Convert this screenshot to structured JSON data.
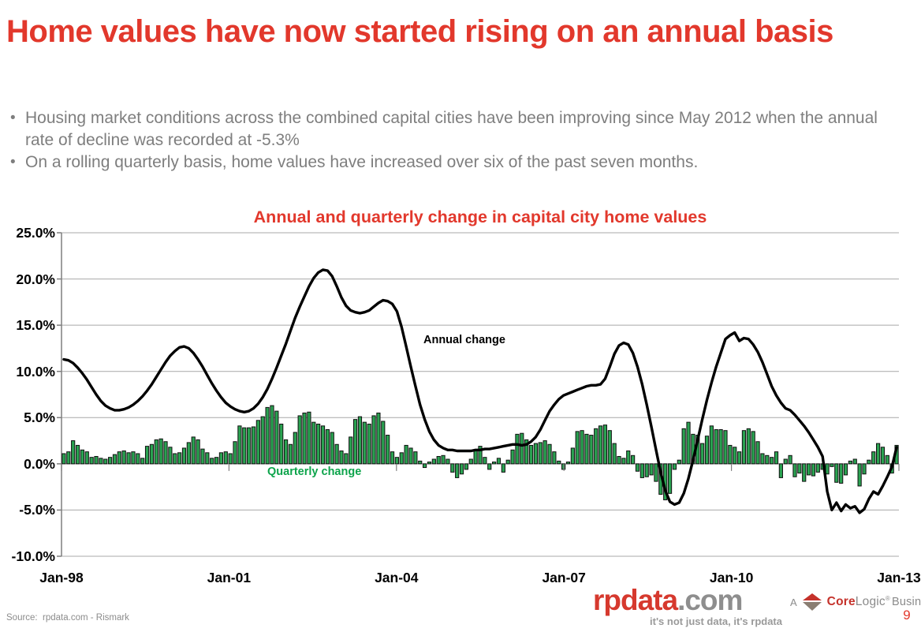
{
  "slide": {
    "title": "Home values have now started rising on an annual basis",
    "bullets": [
      "Housing market conditions across the combined capital cities have been improving since May 2012 when the annual rate of decline was recorded at -5.3%",
      "On a rolling quarterly basis, home values have increased over six of the past seven months."
    ],
    "source_note": "Source:  rpdata.com - Rismark",
    "page_number": "9"
  },
  "branding": {
    "logo_main": "rpdata",
    "logo_suffix": ".com",
    "tagline": "it's not just data, it's rpdata",
    "corelogic_prefix": "A",
    "corelogic_core": "Core",
    "corelogic_logic": "Logic",
    "corelogic_reg": "®",
    "corelogic_business": "Business"
  },
  "colors": {
    "accent_red": "#E2382C",
    "logo_red": "#D6392E",
    "bar_green": "#2AA251",
    "label_green": "#0DA44B",
    "line_black": "#000000",
    "grid_gray": "#A8A8A8",
    "axis_gray": "#7F7F7F",
    "text_gray": "#7E7E7E"
  },
  "chart_data": {
    "type": "combo-bar-line",
    "title": "Annual and quarterly change in capital city home values",
    "x_start": "Jan-1998",
    "x_end": "Jan-2013",
    "x_step_months": 1,
    "point_count": 181,
    "ylim": [
      -10,
      25
    ],
    "grid": true,
    "y_ticks": [
      "25.0%",
      "20.0%",
      "15.0%",
      "10.0%",
      "5.0%",
      "0.0%",
      "-5.0%",
      "-10.0%"
    ],
    "y_tick_values": [
      25,
      20,
      15,
      10,
      5,
      0,
      -5,
      -10
    ],
    "x_ticks": [
      "Jan-98",
      "Jan-01",
      "Jan-04",
      "Jan-07",
      "Jan-10",
      "Jan-13"
    ],
    "series": [
      {
        "name": "Annual change",
        "type": "line",
        "color": "#000000",
        "values": [
          11.3,
          11.2,
          10.9,
          10.4,
          9.8,
          9.1,
          8.3,
          7.5,
          6.8,
          6.3,
          6.0,
          5.8,
          5.8,
          5.9,
          6.1,
          6.4,
          6.8,
          7.3,
          7.9,
          8.6,
          9.4,
          10.2,
          11.0,
          11.7,
          12.2,
          12.6,
          12.7,
          12.5,
          12.0,
          11.3,
          10.5,
          9.6,
          8.7,
          7.9,
          7.2,
          6.6,
          6.2,
          5.9,
          5.7,
          5.6,
          5.7,
          6.0,
          6.5,
          7.2,
          8.1,
          9.2,
          10.4,
          11.7,
          13.0,
          14.4,
          15.8,
          17.0,
          18.1,
          19.2,
          20.1,
          20.7,
          21.0,
          20.9,
          20.3,
          19.2,
          18.0,
          17.1,
          16.6,
          16.4,
          16.3,
          16.4,
          16.6,
          17.0,
          17.4,
          17.7,
          17.6,
          17.3,
          16.5,
          14.8,
          12.7,
          10.5,
          8.4,
          6.4,
          4.8,
          3.5,
          2.6,
          2.0,
          1.7,
          1.5,
          1.5,
          1.4,
          1.4,
          1.4,
          1.4,
          1.5,
          1.5,
          1.6,
          1.6,
          1.7,
          1.8,
          1.9,
          2.0,
          2.1,
          2.1,
          2.0,
          2.1,
          2.4,
          2.9,
          3.7,
          4.7,
          5.7,
          6.4,
          7.0,
          7.4,
          7.6,
          7.8,
          8.0,
          8.2,
          8.4,
          8.5,
          8.5,
          8.6,
          9.2,
          10.5,
          11.9,
          12.8,
          13.1,
          12.9,
          12.0,
          10.5,
          8.6,
          6.4,
          4.0,
          1.5,
          -0.9,
          -2.9,
          -4.1,
          -4.4,
          -4.2,
          -3.2,
          -1.6,
          0.4,
          2.6,
          4.8,
          6.9,
          8.8,
          10.5,
          12.0,
          13.5,
          13.9,
          14.2,
          13.3,
          13.6,
          13.5,
          12.9,
          12.1,
          11.0,
          9.7,
          8.4,
          7.4,
          6.6,
          6.0,
          5.8,
          5.3,
          4.7,
          4.1,
          3.4,
          2.6,
          1.8,
          0.8,
          -3.0,
          -5.0,
          -4.2,
          -5.1,
          -4.4,
          -4.8,
          -4.6,
          -5.3,
          -4.9,
          -3.8,
          -3.0,
          -3.3,
          -2.4,
          -1.4,
          -0.3,
          1.8
        ]
      },
      {
        "name": "Quarterly change",
        "type": "bar",
        "color": "#2AA251",
        "values": [
          1.1,
          1.3,
          2.5,
          2.0,
          1.5,
          1.3,
          0.7,
          0.8,
          0.6,
          0.5,
          0.7,
          1.0,
          1.3,
          1.4,
          1.2,
          1.3,
          1.1,
          0.6,
          1.9,
          2.1,
          2.6,
          2.7,
          2.4,
          1.8,
          1.1,
          1.2,
          1.7,
          2.3,
          2.9,
          2.6,
          1.6,
          1.2,
          0.6,
          0.7,
          1.2,
          1.3,
          1.1,
          2.4,
          4.1,
          3.9,
          3.9,
          4.0,
          4.7,
          5.1,
          6.1,
          6.3,
          5.7,
          4.3,
          2.6,
          2.1,
          3.4,
          5.2,
          5.5,
          5.6,
          4.5,
          4.3,
          4.1,
          3.7,
          3.4,
          2.1,
          1.4,
          1.1,
          2.9,
          4.8,
          5.1,
          4.5,
          4.3,
          5.2,
          5.5,
          4.6,
          3.1,
          1.3,
          0.7,
          1.2,
          2.0,
          1.7,
          1.3,
          0.3,
          -0.4,
          0.2,
          0.5,
          0.8,
          0.9,
          0.5,
          -0.9,
          -1.5,
          -1.1,
          -0.6,
          0.5,
          1.4,
          1.9,
          0.7,
          -0.6,
          0.2,
          0.6,
          -0.9,
          0.4,
          1.5,
          3.2,
          3.3,
          2.6,
          2.0,
          2.2,
          2.3,
          2.5,
          2.1,
          1.3,
          0.3,
          -0.6,
          0.2,
          1.7,
          3.5,
          3.6,
          3.2,
          3.1,
          3.8,
          4.1,
          4.2,
          3.6,
          2.2,
          0.8,
          0.6,
          1.4,
          0.9,
          -0.8,
          -1.5,
          -1.4,
          -1.2,
          -1.9,
          -3.3,
          -3.9,
          -3.2,
          -0.6,
          0.4,
          3.8,
          4.5,
          3.2,
          3.1,
          2.2,
          3.0,
          4.1,
          3.7,
          3.7,
          3.6,
          2.0,
          1.8,
          1.3,
          3.6,
          3.8,
          3.5,
          2.4,
          1.1,
          0.9,
          0.7,
          1.3,
          -1.5,
          0.5,
          0.9,
          -1.4,
          -1.0,
          -1.9,
          -1.2,
          -1.3,
          -0.9,
          -0.6,
          -1.1,
          -0.3,
          -2.0,
          -2.1,
          -1.2,
          0.3,
          0.5,
          -2.4,
          -1.1,
          0.4,
          1.3,
          2.2,
          1.8,
          0.9,
          -1.0,
          2.0
        ]
      }
    ],
    "legend_position": "inline-annotations"
  }
}
